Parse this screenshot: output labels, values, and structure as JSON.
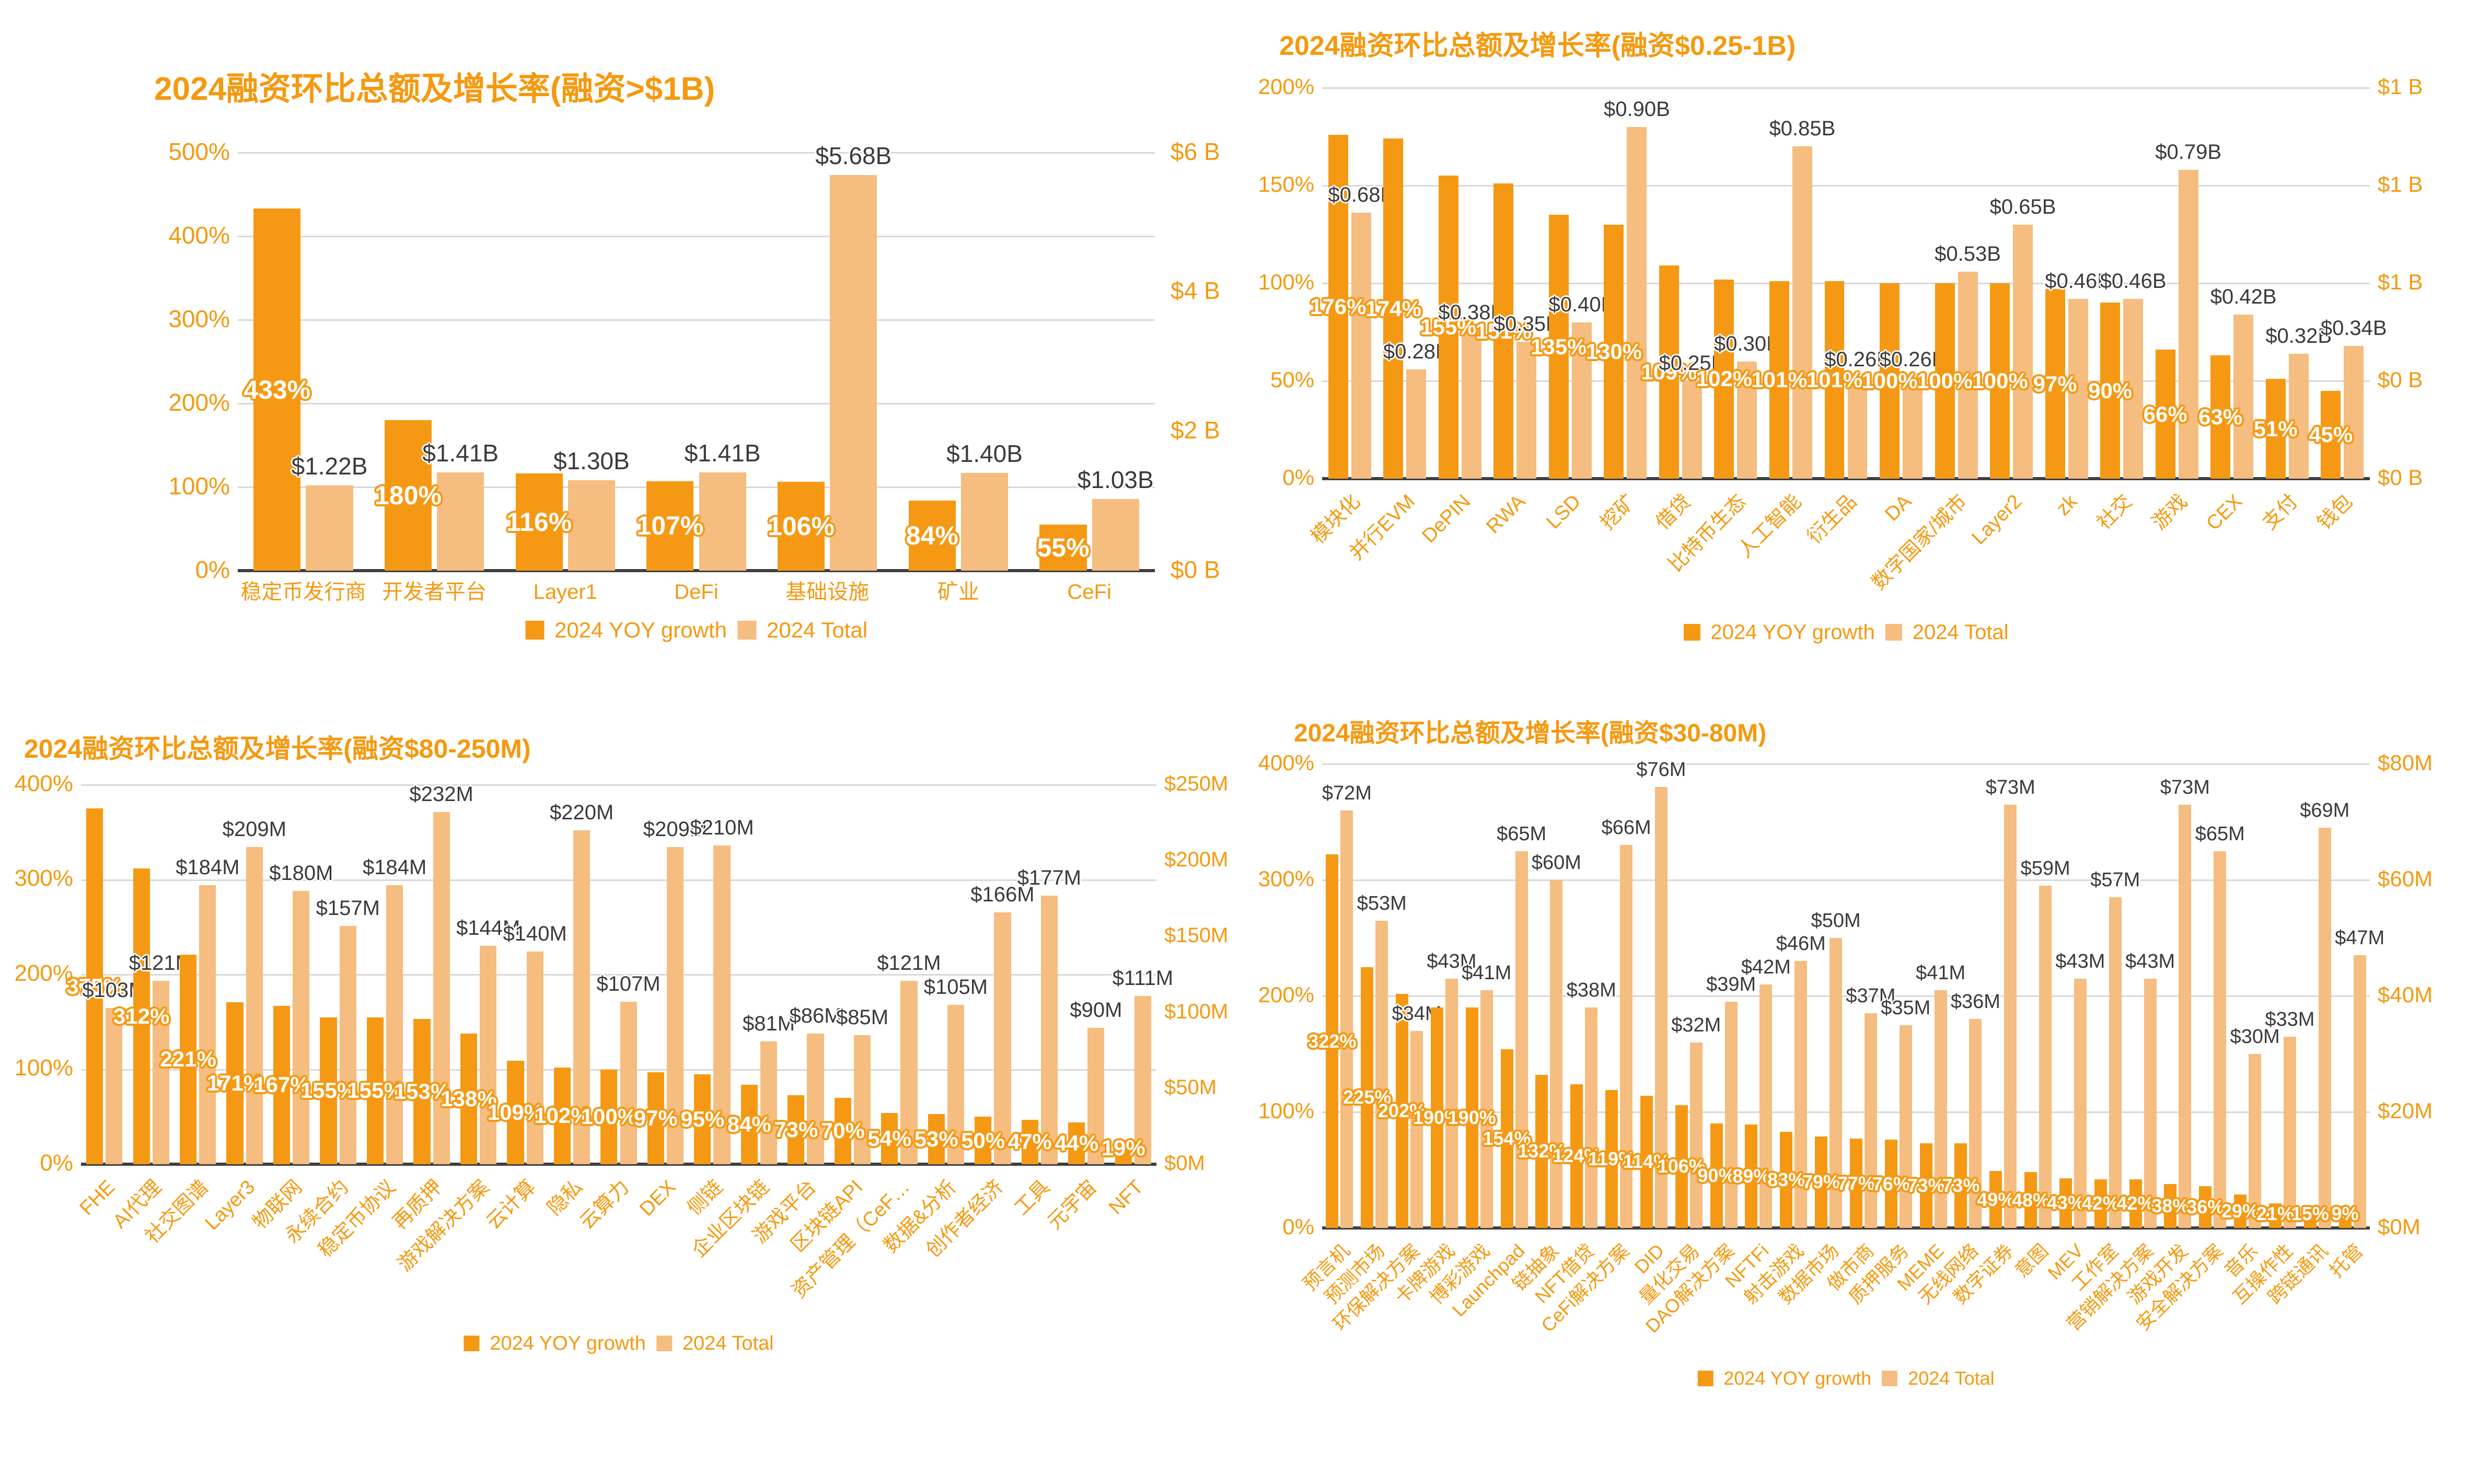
{
  "colors": {
    "growth": "#F59914",
    "total": "#F5BD80",
    "accent": "#F5990F",
    "grid": "#D8D8D8",
    "baseline": "#3E3E40",
    "value_label": "#3A3A3A"
  },
  "legend": {
    "growth_label": "2024 YOY growth",
    "total_label": "2024 Total"
  },
  "chart_data": [
    {
      "type": "bar",
      "title": "2024融资环比总额及增长率(融资>$1B)",
      "categories": [
        "稳定币发行商",
        "开发者平台",
        "Layer1",
        "DeFi",
        "基础设施",
        "矿业",
        "CeFi"
      ],
      "series": [
        {
          "name": "2024 YOY growth",
          "axis": "left",
          "values": [
            433,
            180,
            116,
            107,
            106,
            84,
            55
          ],
          "labels": [
            "433%",
            "180%",
            "116%",
            "107%",
            "106%",
            "84%",
            "55%"
          ]
        },
        {
          "name": "2024 Total",
          "axis": "right",
          "values": [
            1.22,
            1.41,
            1.3,
            1.41,
            5.68,
            1.4,
            1.03
          ],
          "labels": [
            "$1.22B",
            "$1.41B",
            "$1.30B",
            "$1.41B",
            "$5.68B",
            "$1.40B",
            "$1.03B"
          ]
        }
      ],
      "left_axis": {
        "ticks": [
          "500%",
          "400%",
          "300%",
          "200%",
          "100%",
          "0%"
        ],
        "min": 0,
        "max": 500
      },
      "right_axis": {
        "ticks": [
          "$6 B",
          "$4 B",
          "$2 B",
          "$0 B"
        ],
        "min": 0,
        "max": 6
      },
      "grid": true,
      "legend_position": "bottom"
    },
    {
      "type": "bar",
      "title": "2024融资环比总额及增长率(融资$0.25-1B)",
      "categories": [
        "模块化",
        "并行EVM",
        "DePIN",
        "RWA",
        "LSD",
        "挖矿",
        "借贷",
        "比特币生态",
        "人工智能",
        "衍生品",
        "DA",
        "数字国家/城市",
        "Layer2",
        "zk",
        "社交",
        "游戏",
        "CEX",
        "支付",
        "钱包"
      ],
      "series": [
        {
          "name": "2024 YOY growth",
          "axis": "left",
          "values": [
            176,
            174,
            155,
            151,
            135,
            130,
            109,
            102,
            101,
            101,
            100,
            100,
            100,
            97,
            90,
            66,
            63,
            51,
            45
          ],
          "labels": [
            "176%",
            "174%",
            "155%",
            "151%",
            "135%",
            "130%",
            "109%",
            "102%",
            "101%",
            "101%",
            "100%",
            "100%",
            "100%",
            "97%",
            "90%",
            "66%",
            "63%",
            "51%",
            "45%"
          ]
        },
        {
          "name": "2024 Total",
          "axis": "right",
          "values": [
            0.68,
            0.28,
            0.38,
            0.35,
            0.4,
            0.9,
            0.25,
            0.3,
            0.85,
            0.26,
            0.26,
            0.53,
            0.65,
            0.46,
            0.46,
            0.79,
            0.42,
            0.32,
            0.34
          ],
          "labels": [
            "$0.68B",
            "$0.28B",
            "$0.38B",
            "$0.35B",
            "$0.40B",
            "$0.90B",
            "$0.25B",
            "$0.30B",
            "$0.85B",
            "$0.26B",
            "$0.26B",
            "$0.53B",
            "$0.65B",
            "$0.46B",
            "$0.46B",
            "$0.79B",
            "$0.42B",
            "$0.32B",
            "$0.34B"
          ]
        }
      ],
      "left_axis": {
        "ticks": [
          "200%",
          "150%",
          "100%",
          "50%",
          "0%"
        ],
        "min": 0,
        "max": 200
      },
      "right_axis": {
        "ticks": [
          "$1 B",
          "$1 B",
          "$1 B",
          "$0 B",
          "$0 B"
        ],
        "min": 0,
        "max": 1
      },
      "grid": true,
      "legend_position": "bottom"
    },
    {
      "type": "bar",
      "title": "2024融资环比总额及增长率(融资$80-250M)",
      "categories": [
        "FHE",
        "AI代理",
        "社交图谱",
        "Layer3",
        "物联网",
        "永续合约",
        "稳定币协议",
        "再质押",
        "游戏解决方案",
        "云计算",
        "隐私",
        "云算力",
        "DEX",
        "侧链",
        "企业区块链",
        "游戏平台",
        "区块链API",
        "资产管理（CeF…",
        "数据&分析",
        "创作者经济",
        "工具",
        "元宇宙",
        "NFT"
      ],
      "series": [
        {
          "name": "2024 YOY growth",
          "axis": "left",
          "values": [
            375,
            312,
            221,
            171,
            167,
            155,
            155,
            153,
            138,
            109,
            102,
            100,
            97,
            95,
            84,
            73,
            70,
            54,
            53,
            50,
            47,
            44,
            19
          ],
          "labels": [
            "375%",
            "312%",
            "221%",
            "171%",
            "167%",
            "155%",
            "155%",
            "153%",
            "138%",
            "109%",
            "102%",
            "100%",
            "97%",
            "95%",
            "84%",
            "73%",
            "70%",
            "54%",
            "53%",
            "50%",
            "47%",
            "44%",
            "19%"
          ]
        },
        {
          "name": "2024 Total",
          "axis": "right",
          "values": [
            103,
            121,
            184,
            209,
            180,
            157,
            184,
            232,
            144,
            140,
            220,
            107,
            209,
            210,
            81,
            86,
            85,
            121,
            105,
            166,
            177,
            90,
            111
          ],
          "labels": [
            "$103M",
            "$121M",
            "$184M",
            "$209M",
            "$180M",
            "$157M",
            "$184M",
            "$232M",
            "$144M",
            "$140M",
            "$220M",
            "$107M",
            "$209M",
            "$210M",
            "$81M",
            "$86M",
            "$85M",
            "$121M",
            "$105M",
            "$166M",
            "$177M",
            "$90M",
            "$111M"
          ]
        }
      ],
      "left_axis": {
        "ticks": [
          "400%",
          "300%",
          "200%",
          "100%",
          "0%"
        ],
        "min": 0,
        "max": 400
      },
      "right_axis": {
        "ticks": [
          "$250M",
          "$200M",
          "$150M",
          "$100M",
          "$50M",
          "$0M"
        ],
        "min": 0,
        "max": 250
      },
      "grid": true,
      "legend_position": "bottom"
    },
    {
      "type": "bar",
      "title": "2024融资环比总额及增长率(融资$30-80M)",
      "categories": [
        "预言机",
        "预测市场",
        "环保解决方案",
        "卡牌游戏",
        "博彩游戏",
        "Launchpad",
        "链抽象",
        "NFT借贷",
        "CeFi解决方案",
        "DID",
        "量化交易",
        "DAO解决方案",
        "NFTFi",
        "射击游戏",
        "数据市场",
        "做市商",
        "质押服务",
        "MEME",
        "无线网络",
        "数字证券",
        "意图",
        "MEV",
        "工作室",
        "营销解决方案",
        "游戏开发",
        "安全解决方案",
        "音乐",
        "互操作性",
        "跨链通讯",
        "托管"
      ],
      "series": [
        {
          "name": "2024 YOY growth",
          "axis": "left",
          "values": [
            322,
            225,
            202,
            190,
            190,
            154,
            132,
            124,
            119,
            114,
            106,
            90,
            89,
            83,
            79,
            77,
            76,
            73,
            73,
            49,
            48,
            43,
            42,
            42,
            38,
            36,
            29,
            21,
            15,
            9
          ],
          "labels": [
            "322%",
            "225%",
            "202%",
            "190%",
            "190%",
            "154%",
            "132%",
            "124%",
            "119%",
            "114%",
            "106%",
            "90%",
            "89%",
            "83%",
            "79%",
            "77%",
            "76%",
            "73%",
            "73%",
            "49%",
            "48%",
            "43%",
            "42%",
            "42%",
            "38%",
            "36%",
            "29%",
            "21%",
            "15%",
            "9%"
          ]
        },
        {
          "name": "2024 Total",
          "axis": "right",
          "values": [
            72,
            53,
            34,
            43,
            41,
            65,
            60,
            38,
            66,
            76,
            32,
            39,
            42,
            46,
            50,
            37,
            35,
            41,
            36,
            73,
            59,
            43,
            57,
            43,
            73,
            65,
            30,
            33,
            69,
            47
          ],
          "labels": [
            "$72M",
            "$53M",
            "$34M",
            "$43M",
            "$41M",
            "$65M",
            "$60M",
            "$38M",
            "$66M",
            "$76M",
            "$32M",
            "$39M",
            "$42M",
            "$46M",
            "$50M",
            "$37M",
            "$35M",
            "$41M",
            "$36M",
            "$73M",
            "$59M",
            "$43M",
            "$57M",
            "$43M",
            "$73M",
            "$65M",
            "$30M",
            "$33M",
            "$69M",
            "$47M"
          ]
        }
      ],
      "left_axis": {
        "ticks": [
          "400%",
          "300%",
          "200%",
          "100%",
          "0%"
        ],
        "min": 0,
        "max": 400
      },
      "right_axis": {
        "ticks": [
          "$80M",
          "$60M",
          "$40M",
          "$20M",
          "$0M"
        ],
        "min": 0,
        "max": 80
      },
      "grid": true,
      "legend_position": "bottom"
    }
  ]
}
